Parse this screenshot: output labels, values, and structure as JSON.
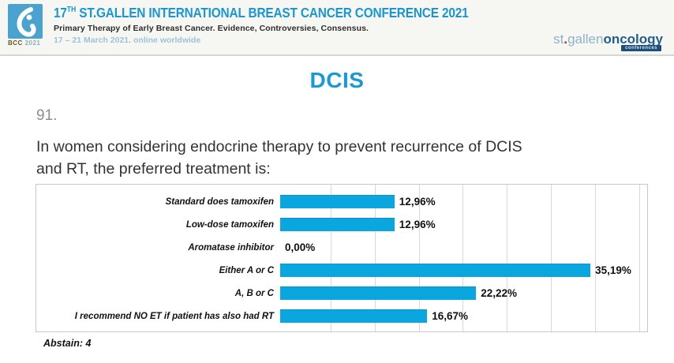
{
  "header": {
    "logo": {
      "bcc": "BCC",
      "year": "2021"
    },
    "title_number": "17",
    "title_sup": "TH",
    "title_rest": " ST.GALLEN INTERNATIONAL BREAST CANCER CONFERENCE 2021",
    "subtitle": "Primary Therapy of Early Breast Cancer. Evidence, Controversies, Consensus.",
    "dates": "17 – 21 March 2021. online worldwide",
    "brand": {
      "light": "st",
      "dot": ".",
      "mid": "gallen",
      "dark": "oncology",
      "badge": "conferences"
    }
  },
  "slide": {
    "section_title": "DCIS",
    "question_number": "91.",
    "question_line1": "In women considering endocrine therapy to prevent recurrence of DCIS",
    "question_line2": "and RT, the preferred treatment is:",
    "abstain": "Abstain: 4"
  },
  "chart_data": {
    "type": "bar",
    "orientation": "horizontal",
    "title": "",
    "categories": [
      "Standard does tamoxifen",
      "Low-dose tamoxifen",
      "Aromatase inhibitor",
      "Either A or C",
      "A, B or C",
      "I recommend NO ET if patient has also had RT"
    ],
    "values": [
      12.96,
      12.96,
      0.0,
      35.19,
      22.22,
      16.67
    ],
    "value_labels": [
      "12,96%",
      "12,96%",
      "0,00%",
      "35,19%",
      "22,22%",
      "16,67%"
    ],
    "xlim": [
      0,
      41
    ],
    "gridline_interval": 5,
    "grid": true,
    "legend": false,
    "bar_color": "#0aa6e0"
  },
  "colors": {
    "accent_blue": "#1a9ad5",
    "bar_blue": "#0aa6e0",
    "header_title_blue": "#1a97d2",
    "dates_blue": "#9cc4d6",
    "brand_light_blue": "#8fb3c6",
    "brand_dark_blue": "#235e8c",
    "badge_navy": "#1d4f7c",
    "gridline_gray": "#d9d9d9"
  }
}
